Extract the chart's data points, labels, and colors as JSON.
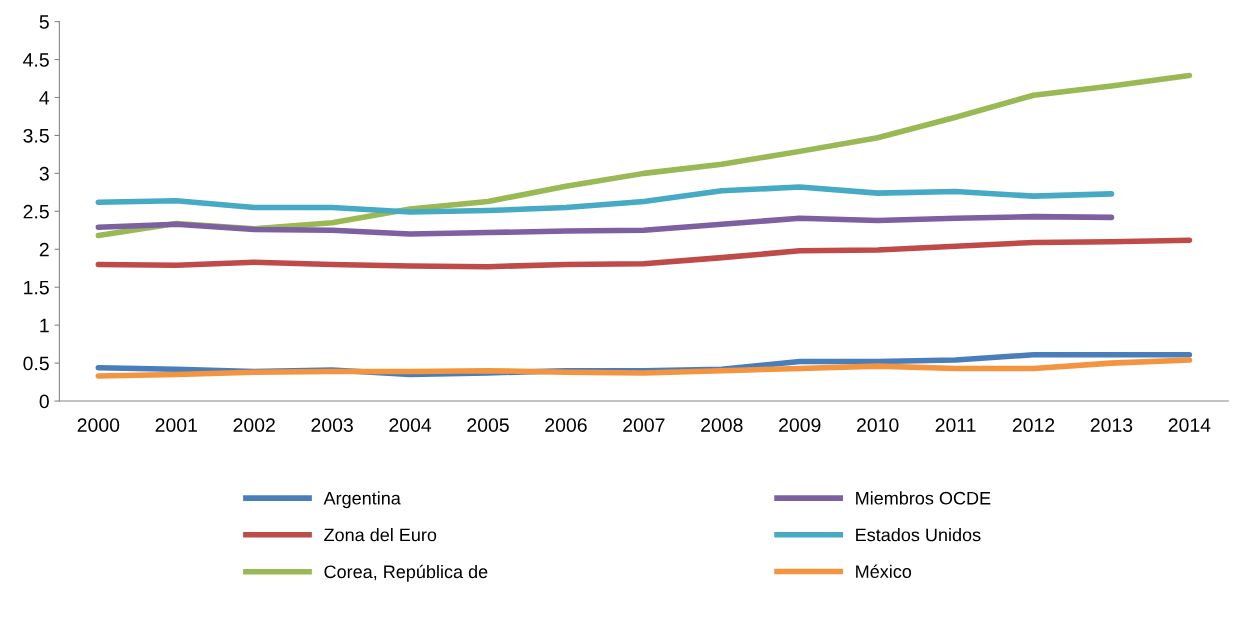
{
  "chart_data": {
    "type": "line",
    "categories": [
      "2000",
      "2001",
      "2002",
      "2003",
      "2004",
      "2005",
      "2006",
      "2007",
      "2008",
      "2009",
      "2010",
      "2011",
      "2012",
      "2013",
      "2014"
    ],
    "series": [
      {
        "name": "Argentina",
        "color": "#4a7ebb",
        "values": [
          0.44,
          0.42,
          0.39,
          0.41,
          0.35,
          0.37,
          0.4,
          0.4,
          0.42,
          0.52,
          0.52,
          0.54,
          0.61,
          0.61,
          0.61
        ]
      },
      {
        "name": "Zona del Euro",
        "color": "#be4b48",
        "values": [
          1.8,
          1.79,
          1.83,
          1.8,
          1.78,
          1.77,
          1.8,
          1.81,
          1.89,
          1.98,
          1.99,
          2.04,
          2.09,
          2.1,
          2.12
        ]
      },
      {
        "name": "Corea, República de",
        "color": "#98b954",
        "values": [
          2.18,
          2.34,
          2.27,
          2.35,
          2.53,
          2.63,
          2.83,
          3.0,
          3.12,
          3.29,
          3.47,
          3.74,
          4.03,
          4.15,
          4.29
        ]
      },
      {
        "name": "Miembros OCDE",
        "color": "#7d60a0",
        "values": [
          2.29,
          2.33,
          2.26,
          2.25,
          2.2,
          2.22,
          2.24,
          2.25,
          2.33,
          2.41,
          2.38,
          2.41,
          2.43,
          2.42,
          null
        ]
      },
      {
        "name": "Estados Unidos",
        "color": "#46aac5",
        "values": [
          2.62,
          2.64,
          2.55,
          2.55,
          2.49,
          2.51,
          2.55,
          2.63,
          2.77,
          2.82,
          2.74,
          2.76,
          2.7,
          2.73,
          null
        ]
      },
      {
        "name": "México",
        "color": "#f39540",
        "values": [
          0.33,
          0.35,
          0.38,
          0.39,
          0.39,
          0.4,
          0.38,
          0.37,
          0.4,
          0.43,
          0.46,
          0.43,
          0.43,
          0.5,
          0.54
        ]
      }
    ],
    "ylim": [
      0,
      5
    ],
    "yticks": [
      0,
      0.5,
      1,
      1.5,
      2,
      2.5,
      3,
      3.5,
      4,
      4.5,
      5
    ],
    "grid": false,
    "legend": "bottom",
    "marker": "none",
    "line_style": "solid"
  }
}
